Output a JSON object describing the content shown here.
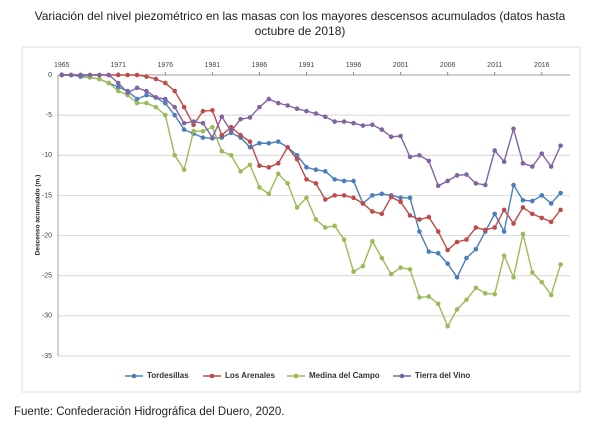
{
  "chart_data": {
    "type": "line",
    "title": [
      "Variación del nivel piezométrico en las masas con los mayores descensos acumulados (datos hasta",
      "octubre de 2018)"
    ],
    "y_label": "Descenso acumulado (m.)",
    "source": "Fuente: Confederación Hidrográfica del Duero, 2020.",
    "x": [
      1965,
      1966,
      1967,
      1968,
      1969,
      1970,
      1971,
      1972,
      1973,
      1974,
      1975,
      1976,
      1977,
      1978,
      1979,
      1980,
      1981,
      1982,
      1983,
      1984,
      1985,
      1986,
      1987,
      1988,
      1989,
      1990,
      1991,
      1992,
      1993,
      1994,
      1995,
      1996,
      1997,
      1998,
      1999,
      2000,
      2001,
      2002,
      2003,
      2004,
      2005,
      2006,
      2007,
      2008,
      2009,
      2010,
      2011,
      2012,
      2013,
      2014,
      2015,
      2016,
      2017,
      2018
    ],
    "series": [
      {
        "name": "Tordesillas",
        "color": "#4a7ebb",
        "values": [
          0,
          0,
          -0.2,
          -0.3,
          -0.5,
          -1,
          -1.5,
          -2,
          -3,
          -2.5,
          -2.8,
          -3.5,
          -5,
          -6.8,
          -7.3,
          -7.8,
          -7.9,
          -7.8,
          -7.2,
          -7.8,
          -9,
          -8.5,
          -8.5,
          -8.3,
          -9,
          -10,
          -11.5,
          -11.8,
          -12,
          -13,
          -13.2,
          -13.2,
          -16,
          -15,
          -14.8,
          -15,
          -15.3,
          -15.3,
          -19.5,
          -22,
          -22.2,
          -23.5,
          -25.2,
          -22.8,
          -21.7,
          -19.5,
          -17.3,
          -19.5,
          -13.7,
          -15.6,
          -15.7,
          -15,
          -16,
          -14.7
        ]
      },
      {
        "name": "Los Arenales",
        "color": "#be4b48",
        "values": [
          0,
          0,
          0,
          0,
          0,
          0,
          0,
          0,
          0,
          -0.2,
          -0.5,
          -1,
          -2,
          -4,
          -6.2,
          -4.5,
          -4.4,
          -7.5,
          -6.5,
          -7.5,
          -8.3,
          -11.3,
          -11.5,
          -11,
          -9,
          -10.5,
          -13,
          -13.5,
          -15.5,
          -15,
          -15,
          -15.3,
          -16,
          -17,
          -17.3,
          -15.2,
          -15.8,
          -17.5,
          -18,
          -17.7,
          -19.5,
          -21.8,
          -20.8,
          -20.5,
          -19,
          -19.3,
          -19,
          -16.8,
          -18.5,
          -16.5,
          -17.3,
          -17.8,
          -18.3,
          -16.8
        ]
      },
      {
        "name": "Medina del Campo",
        "color": "#9bbb59",
        "values": [
          0,
          0,
          0,
          -0.3,
          -0.5,
          -1,
          -2,
          -2.5,
          -3.5,
          -3.5,
          -4,
          -5,
          -10,
          -11.8,
          -7,
          -7,
          -6.5,
          -9.5,
          -10,
          -12,
          -11.2,
          -14,
          -14.8,
          -12.3,
          -13.5,
          -16.5,
          -15.3,
          -18,
          -19,
          -18.8,
          -20.5,
          -24.5,
          -23.8,
          -20.7,
          -22.8,
          -24.8,
          -24,
          -24.2,
          -27.7,
          -27.6,
          -28.5,
          -31.3,
          -29.2,
          -28,
          -26.5,
          -27.2,
          -27.3,
          -22.5,
          -25.2,
          -19.8,
          -24.6,
          -25.8,
          -27.4,
          -23.6
        ]
      },
      {
        "name": "Tierra del Vino",
        "color": "#8064a2",
        "values": [
          0,
          0,
          0,
          0,
          0,
          0,
          -1,
          -2.2,
          -1.6,
          -2,
          -2.8,
          -3,
          -4,
          -6,
          -5.8,
          -6,
          -7.8,
          -5.2,
          -7,
          -5.5,
          -5.3,
          -4,
          -3,
          -3.5,
          -3.8,
          -4.2,
          -4.5,
          -4.8,
          -5.2,
          -5.8,
          -5.8,
          -6,
          -6.3,
          -6.2,
          -6.8,
          -7.7,
          -7.6,
          -10.2,
          -10,
          -10.7,
          -13.8,
          -13.2,
          -12.5,
          -12.4,
          -13.5,
          -13.7,
          -9.4,
          -10.8,
          -6.7,
          -11,
          -11.4,
          -9.8,
          -11.4,
          -8.8
        ]
      }
    ],
    "xlim": [
      1964.6,
      2019
    ],
    "xticks": [
      1965,
      1971,
      1976,
      1981,
      1986,
      1991,
      1996,
      2001,
      2006,
      2011,
      2016
    ],
    "ylim": [
      -35,
      0
    ],
    "yticks": [
      0,
      -5,
      -10,
      -15,
      -20,
      -25,
      -30,
      -35
    ],
    "grid": true,
    "legend": "bottom"
  }
}
